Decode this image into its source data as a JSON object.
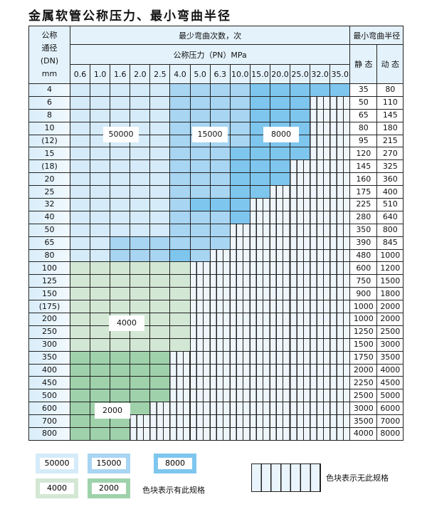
{
  "title": "金属软管公称压力、最小弯曲半径",
  "header": {
    "dn_label": [
      "公称",
      "通径",
      "(DN)",
      "mm"
    ],
    "cycles_label": "最少弯曲次数，次",
    "pressure_label": "公称压力（PN）MPa",
    "radius_label": "最小弯曲半径",
    "static_label": "静 态",
    "dynamic_label": "动 态",
    "pressures": [
      "0.6",
      "1.0",
      "1.6",
      "2.0",
      "2.5",
      "4.0",
      "5.0",
      "6.3",
      "10.0",
      "15.0",
      "20.0",
      "25.0",
      "32.0",
      "35.0"
    ]
  },
  "colors": {
    "L": "#d5ebf9",
    "M": "#a8d5f2",
    "D": "#7ec6ee",
    "G": "#d3e8d4",
    "H": "#9fd2ab",
    "none": "#eef6fc"
  },
  "rows": [
    {
      "dn": "4",
      "cells": "LLLLLMMMMDDDDD",
      "static": "35",
      "dynamic": "80"
    },
    {
      "dn": "6",
      "cells": "LLLLLMMMMDDDXX",
      "static": "50",
      "dynamic": "110"
    },
    {
      "dn": "8",
      "cells": "LLLLLMMMMDDDXX",
      "static": "65",
      "dynamic": "145"
    },
    {
      "dn": "10",
      "cells": "LLLLLMMMMDDDXX",
      "static": "80",
      "dynamic": "180"
    },
    {
      "dn": "(12)",
      "cells": "LLLLLMMMMDDDXX",
      "static": "95",
      "dynamic": "215"
    },
    {
      "dn": "15",
      "cells": "LLLLLMMMDDDDXX",
      "static": "120",
      "dynamic": "270"
    },
    {
      "dn": "(18)",
      "cells": "LLLLLMMMDDDXXX",
      "static": "145",
      "dynamic": "325"
    },
    {
      "dn": "20",
      "cells": "LLLLLMMMDDDXXX",
      "static": "160",
      "dynamic": "360"
    },
    {
      "dn": "25",
      "cells": "LLLLLMMMDDXXXX",
      "static": "175",
      "dynamic": "400"
    },
    {
      "dn": "32",
      "cells": "LLLLLMDDDXXXXX",
      "static": "225",
      "dynamic": "510"
    },
    {
      "dn": "40",
      "cells": "LLLLLMMMDXXXXX",
      "static": "280",
      "dynamic": "640"
    },
    {
      "dn": "50",
      "cells": "LLLLLMMMXXXXXX",
      "static": "350",
      "dynamic": "800"
    },
    {
      "dn": "65",
      "cells": "LLMMMMMMXXXXXX",
      "static": "390",
      "dynamic": "845"
    },
    {
      "dn": "80",
      "cells": "LLMMMDMXXXXXXX",
      "static": "480",
      "dynamic": "1000"
    },
    {
      "dn": "100",
      "cells": "GGGGGGXXXXXXXX",
      "static": "600",
      "dynamic": "1200"
    },
    {
      "dn": "125",
      "cells": "GGGGGGXXXXXXXX",
      "static": "750",
      "dynamic": "1500"
    },
    {
      "dn": "150",
      "cells": "GGGGGGXXXXXXXX",
      "static": "900",
      "dynamic": "1800"
    },
    {
      "dn": "(175)",
      "cells": "GGGGGGXXXXXXXX",
      "static": "1000",
      "dynamic": "2000"
    },
    {
      "dn": "200",
      "cells": "GGGGGGXXXXXXXX",
      "static": "1000",
      "dynamic": "2000"
    },
    {
      "dn": "250",
      "cells": "GGGGGGXXXXXXXX",
      "static": "1250",
      "dynamic": "2500"
    },
    {
      "dn": "300",
      "cells": "GGGGGGXXXXXXXX",
      "static": "1500",
      "dynamic": "3000"
    },
    {
      "dn": "350",
      "cells": "HHHHHXXXXXXXXX",
      "static": "1750",
      "dynamic": "3500"
    },
    {
      "dn": "400",
      "cells": "HHHHHXXXXXXXXX",
      "static": "2000",
      "dynamic": "4000"
    },
    {
      "dn": "450",
      "cells": "HHHHHXXXXXXXXX",
      "static": "2250",
      "dynamic": "4500"
    },
    {
      "dn": "500",
      "cells": "HHHHHXXXXXXXXX",
      "static": "2500",
      "dynamic": "5000"
    },
    {
      "dn": "600",
      "cells": "HHHHXXXXXXXXXX",
      "static": "3000",
      "dynamic": "6000"
    },
    {
      "dn": "700",
      "cells": "HHHXXXXXXXXXXX",
      "static": "3500",
      "dynamic": "7000"
    },
    {
      "dn": "800",
      "cells": "HHHXXXXXXXXXXX",
      "static": "4000",
      "dynamic": "8000"
    }
  ],
  "region_labels": {
    "light_blue": "50000",
    "mid_blue": "15000",
    "dark_blue": "8000",
    "light_green": "4000",
    "dark_green": "2000"
  },
  "legend": {
    "items": [
      "50000",
      "15000",
      "8000",
      "4000",
      "2000"
    ],
    "available_text": "色块表示有此规格",
    "unavailable_text": "色块表示无此规格"
  }
}
